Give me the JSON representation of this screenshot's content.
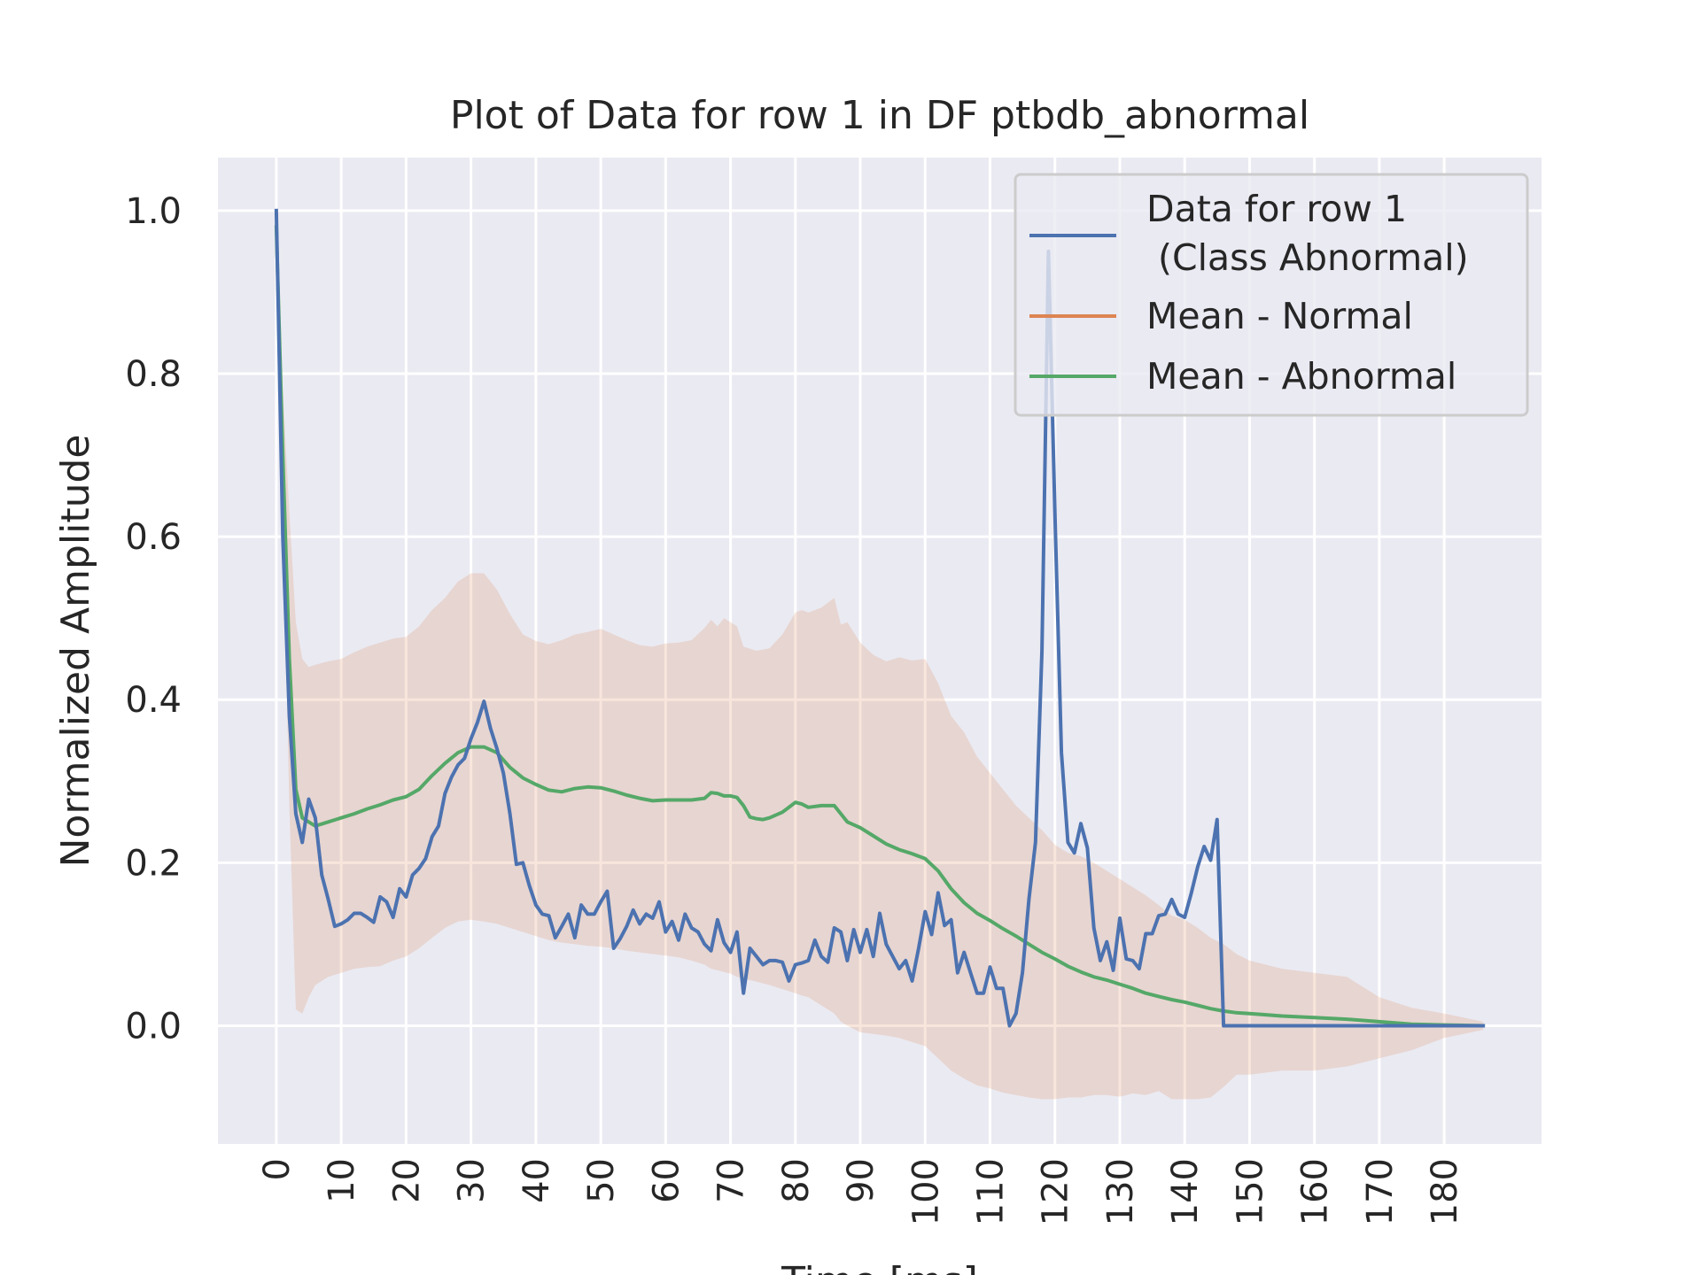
{
  "chart_data": {
    "type": "line",
    "title": "Plot of Data for row 1 in DF ptbdb_abnormal",
    "xlabel": "Time [ms]",
    "ylabel": "Normalized Amplitude",
    "xlim": [
      -9,
      195
    ],
    "ylim": [
      -0.145,
      1.065
    ],
    "grid": true,
    "legend_position": "top-right",
    "background_color": "#eaeaf2",
    "x_ticks": [
      0,
      10,
      20,
      30,
      40,
      50,
      60,
      70,
      80,
      90,
      100,
      110,
      120,
      130,
      140,
      150,
      160,
      170,
      180
    ],
    "x_tick_labels": [
      "0",
      "10",
      "20",
      "30",
      "40",
      "50",
      "60",
      "70",
      "80",
      "90",
      "100",
      "110",
      "120",
      "130",
      "140",
      "150",
      "160",
      "170",
      "180"
    ],
    "y_ticks": [
      0.0,
      0.2,
      0.4,
      0.6,
      0.8,
      1.0
    ],
    "y_tick_labels": [
      "0.0",
      "0.2",
      "0.4",
      "0.6",
      "0.8",
      "1.0"
    ],
    "series": [
      {
        "name": "Data for row 1\n (Class Abnormal)",
        "color": "#4c72b0",
        "x": [
          0,
          1,
          2,
          3,
          4,
          5,
          6,
          7,
          8,
          9,
          10,
          11,
          12,
          13,
          14,
          15,
          16,
          17,
          18,
          19,
          20,
          21,
          22,
          23,
          24,
          25,
          26,
          27,
          28,
          29,
          30,
          31,
          32,
          33,
          34,
          35,
          36,
          37,
          38,
          39,
          40,
          41,
          42,
          43,
          44,
          45,
          46,
          47,
          48,
          49,
          50,
          51,
          52,
          53,
          54,
          55,
          56,
          57,
          58,
          59,
          60,
          61,
          62,
          63,
          64,
          65,
          66,
          67,
          68,
          69,
          70,
          71,
          72,
          73,
          74,
          75,
          76,
          77,
          78,
          79,
          80,
          81,
          82,
          83,
          84,
          85,
          86,
          87,
          88,
          89,
          90,
          91,
          92,
          93,
          94,
          95,
          96,
          97,
          98,
          99,
          100,
          101,
          102,
          103,
          104,
          105,
          106,
          107,
          108,
          109,
          110,
          111,
          112,
          113,
          114,
          115,
          116,
          117,
          118,
          119,
          120,
          121,
          122,
          123,
          124,
          125,
          126,
          127,
          128,
          129,
          130,
          131,
          132,
          133,
          134,
          135,
          136,
          137,
          138,
          139,
          140,
          141,
          142,
          143,
          144,
          145,
          146,
          147,
          186
        ],
        "y": [
          1.0,
          0.6,
          0.38,
          0.26,
          0.225,
          0.278,
          0.255,
          0.185,
          0.155,
          0.122,
          0.125,
          0.13,
          0.138,
          0.138,
          0.133,
          0.127,
          0.158,
          0.152,
          0.133,
          0.168,
          0.158,
          0.185,
          0.193,
          0.205,
          0.232,
          0.245,
          0.285,
          0.305,
          0.32,
          0.328,
          0.352,
          0.372,
          0.398,
          0.365,
          0.34,
          0.31,
          0.26,
          0.198,
          0.2,
          0.172,
          0.148,
          0.137,
          0.135,
          0.108,
          0.122,
          0.137,
          0.108,
          0.148,
          0.137,
          0.137,
          0.152,
          0.165,
          0.095,
          0.107,
          0.122,
          0.142,
          0.125,
          0.137,
          0.132,
          0.152,
          0.115,
          0.128,
          0.105,
          0.137,
          0.12,
          0.115,
          0.1,
          0.092,
          0.13,
          0.102,
          0.09,
          0.115,
          0.04,
          0.095,
          0.085,
          0.075,
          0.08,
          0.08,
          0.078,
          0.055,
          0.075,
          0.077,
          0.08,
          0.105,
          0.085,
          0.078,
          0.12,
          0.115,
          0.08,
          0.118,
          0.09,
          0.118,
          0.085,
          0.138,
          0.1,
          0.085,
          0.07,
          0.08,
          0.055,
          0.095,
          0.14,
          0.112,
          0.163,
          0.123,
          0.13,
          0.065,
          0.09,
          0.065,
          0.04,
          0.04,
          0.072,
          0.046,
          0.046,
          0.0,
          0.015,
          0.065,
          0.155,
          0.225,
          0.46,
          0.95,
          0.63,
          0.335,
          0.225,
          0.212,
          0.248,
          0.218,
          0.12,
          0.08,
          0.103,
          0.068,
          0.132,
          0.082,
          0.08,
          0.07,
          0.113,
          0.113,
          0.135,
          0.137,
          0.155,
          0.137,
          0.133,
          0.162,
          0.195,
          0.22,
          0.203,
          0.253,
          0.0,
          0.0,
          0.0
        ]
      },
      {
        "name": "Mean - Normal",
        "color": "#dd8452",
        "x": [],
        "y": []
      },
      {
        "name": "Mean - Abnormal",
        "color": "#55a868",
        "x": [
          0,
          1,
          2,
          3,
          4,
          5,
          6,
          8,
          10,
          12,
          14,
          16,
          18,
          20,
          22,
          24,
          26,
          28,
          30,
          32,
          34,
          36,
          38,
          40,
          42,
          44,
          46,
          48,
          50,
          52,
          54,
          56,
          58,
          60,
          62,
          64,
          66,
          67,
          68,
          69,
          70,
          71,
          72,
          73,
          74,
          75,
          76,
          78,
          80,
          81,
          82,
          84,
          86,
          87,
          88,
          90,
          92,
          94,
          96,
          98,
          100,
          102,
          104,
          106,
          108,
          110,
          112,
          114,
          116,
          118,
          120,
          122,
          124,
          126,
          128,
          130,
          132,
          134,
          136,
          138,
          140,
          142,
          144,
          146,
          148,
          150,
          155,
          160,
          165,
          170,
          175,
          180,
          186
        ],
        "y": [
          0.98,
          0.7,
          0.45,
          0.29,
          0.255,
          0.25,
          0.245,
          0.25,
          0.255,
          0.26,
          0.266,
          0.271,
          0.277,
          0.281,
          0.29,
          0.307,
          0.322,
          0.335,
          0.342,
          0.342,
          0.335,
          0.317,
          0.304,
          0.296,
          0.289,
          0.287,
          0.291,
          0.293,
          0.292,
          0.288,
          0.283,
          0.279,
          0.276,
          0.277,
          0.277,
          0.277,
          0.279,
          0.286,
          0.285,
          0.282,
          0.282,
          0.28,
          0.27,
          0.256,
          0.254,
          0.253,
          0.255,
          0.262,
          0.274,
          0.272,
          0.268,
          0.27,
          0.27,
          0.26,
          0.25,
          0.243,
          0.233,
          0.223,
          0.216,
          0.211,
          0.205,
          0.19,
          0.168,
          0.151,
          0.138,
          0.129,
          0.119,
          0.11,
          0.1,
          0.09,
          0.082,
          0.073,
          0.066,
          0.06,
          0.056,
          0.051,
          0.046,
          0.04,
          0.036,
          0.032,
          0.029,
          0.025,
          0.021,
          0.018,
          0.016,
          0.015,
          0.012,
          0.01,
          0.008,
          0.005,
          0.002,
          0.001,
          0.0
        ]
      }
    ],
    "band": {
      "color": "#dd8452",
      "opacity": 0.2,
      "x": [
        0,
        1,
        2,
        3,
        4,
        5,
        6,
        8,
        10,
        12,
        14,
        16,
        18,
        20,
        22,
        24,
        26,
        28,
        30,
        32,
        34,
        36,
        38,
        40,
        42,
        44,
        46,
        48,
        50,
        52,
        54,
        56,
        58,
        60,
        62,
        64,
        66,
        67,
        68,
        69,
        70,
        71,
        72,
        74,
        76,
        78,
        80,
        81,
        82,
        84,
        86,
        87,
        88,
        90,
        92,
        94,
        96,
        98,
        100,
        102,
        104,
        106,
        108,
        110,
        112,
        114,
        116,
        118,
        120,
        122,
        124,
        126,
        128,
        130,
        132,
        134,
        136,
        138,
        140,
        142,
        144,
        146,
        148,
        150,
        155,
        160,
        165,
        170,
        175,
        180,
        186
      ],
      "upper": [
        1.0,
        0.78,
        0.63,
        0.495,
        0.45,
        0.44,
        0.443,
        0.447,
        0.45,
        0.458,
        0.465,
        0.47,
        0.475,
        0.477,
        0.49,
        0.51,
        0.525,
        0.545,
        0.555,
        0.555,
        0.535,
        0.505,
        0.48,
        0.472,
        0.468,
        0.473,
        0.48,
        0.483,
        0.487,
        0.48,
        0.473,
        0.467,
        0.465,
        0.469,
        0.47,
        0.473,
        0.488,
        0.498,
        0.49,
        0.5,
        0.495,
        0.49,
        0.465,
        0.46,
        0.463,
        0.48,
        0.507,
        0.51,
        0.507,
        0.513,
        0.525,
        0.492,
        0.495,
        0.47,
        0.455,
        0.447,
        0.452,
        0.448,
        0.45,
        0.42,
        0.38,
        0.36,
        0.33,
        0.31,
        0.29,
        0.27,
        0.255,
        0.24,
        0.222,
        0.212,
        0.208,
        0.2,
        0.19,
        0.18,
        0.17,
        0.16,
        0.148,
        0.135,
        0.13,
        0.12,
        0.108,
        0.1,
        0.088,
        0.08,
        0.07,
        0.065,
        0.06,
        0.035,
        0.022,
        0.015,
        0.005
      ],
      "lower": [
        0.96,
        0.62,
        0.27,
        0.02,
        0.015,
        0.035,
        0.05,
        0.06,
        0.065,
        0.07,
        0.072,
        0.073,
        0.08,
        0.085,
        0.095,
        0.108,
        0.12,
        0.128,
        0.13,
        0.128,
        0.125,
        0.12,
        0.115,
        0.11,
        0.105,
        0.102,
        0.1,
        0.098,
        0.097,
        0.095,
        0.092,
        0.09,
        0.088,
        0.086,
        0.084,
        0.08,
        0.075,
        0.07,
        0.068,
        0.066,
        0.064,
        0.06,
        0.058,
        0.054,
        0.05,
        0.045,
        0.04,
        0.037,
        0.035,
        0.025,
        0.015,
        0.005,
        0.0,
        -0.008,
        -0.01,
        -0.012,
        -0.015,
        -0.02,
        -0.025,
        -0.04,
        -0.055,
        -0.065,
        -0.073,
        -0.077,
        -0.082,
        -0.085,
        -0.088,
        -0.09,
        -0.09,
        -0.088,
        -0.088,
        -0.085,
        -0.085,
        -0.087,
        -0.083,
        -0.085,
        -0.08,
        -0.09,
        -0.09,
        -0.09,
        -0.088,
        -0.075,
        -0.06,
        -0.06,
        -0.055,
        -0.055,
        -0.05,
        -0.04,
        -0.03,
        -0.015,
        -0.005
      ]
    },
    "legend_box": {
      "background": "#eaeaf2",
      "border": "#cccccc"
    }
  }
}
